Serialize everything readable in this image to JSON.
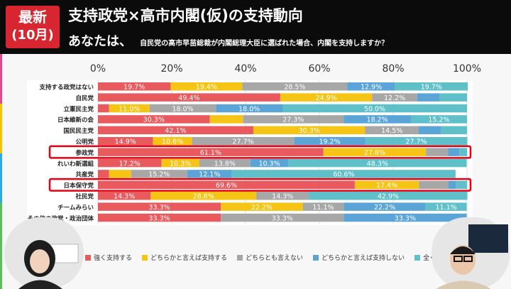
{
  "header": {
    "badge_line1": "最新",
    "badge_line2": "(10月)"
  },
  "chart_data": {
    "type": "bar",
    "orientation": "horizontal",
    "stacked": true,
    "title": "支持政党×高市内閣(仮)の支持動向",
    "subtitle_lead": "あなたは、",
    "subtitle": "自民党の高市早苗総裁が内閣総理大臣に選ばれた場合、内閣を支持しますか？",
    "xlim": [
      0,
      100
    ],
    "x_ticks": [
      "0%",
      "20%",
      "40%",
      "60%",
      "80%",
      "100%"
    ],
    "categories": [
      "支持する政党はない",
      "自民党",
      "立憲民主党",
      "日本維新の会",
      "国民民主党",
      "公明党",
      "参政党",
      "れいわ新選組",
      "共産党",
      "日本保守党",
      "社民党",
      "チームみらい",
      "その他の政党・政治団体"
    ],
    "highlighted": [
      "参政党",
      "日本保守党"
    ],
    "series": [
      {
        "name": "強く支持する",
        "color": "#e85a5e",
        "values": [
          19.7,
          49.4,
          3.0,
          30.3,
          42.1,
          14.9,
          61.1,
          17.2,
          3.0,
          69.6,
          14.3,
          33.3,
          33.3
        ]
      },
      {
        "name": "どちらかと言えば支持する",
        "color": "#f5c415",
        "values": [
          19.4,
          24.9,
          11.0,
          9.0,
          30.3,
          10.6,
          27.8,
          10.3,
          6.0,
          17.4,
          28.6,
          22.2,
          0.0
        ]
      },
      {
        "name": "どちらとも言えない",
        "color": "#a7a7a7",
        "values": [
          28.5,
          12.2,
          18.0,
          27.3,
          14.5,
          27.7,
          6.0,
          13.8,
          15.2,
          8.0,
          14.3,
          11.1,
          33.3
        ]
      },
      {
        "name": "どちらかと言えば支持しない",
        "color": "#5aa4d8",
        "values": [
          12.9,
          6.0,
          18.0,
          18.2,
          6.0,
          19.2,
          3.0,
          10.3,
          12.1,
          2.0,
          0.0,
          22.2,
          33.3
        ]
      },
      {
        "name": "全く支持しない",
        "color": "#5fc0c9",
        "values": [
          19.7,
          7.5,
          50.0,
          15.2,
          7.1,
          27.7,
          2.1,
          48.3,
          60.6,
          3.0,
          42.9,
          11.1,
          0.0
        ]
      }
    ],
    "labels": [
      [
        "19.7%",
        "19.4%",
        "28.5%",
        "12.9%",
        "19.7%"
      ],
      [
        "49.4%",
        "24.9%",
        "12.2%",
        "",
        ""
      ],
      [
        "",
        "11.0%",
        "18.0%",
        "18.0%",
        "50.0%"
      ],
      [
        "30.3%",
        "",
        "27.3%",
        "18.2%",
        "15.2%"
      ],
      [
        "42.1%",
        "30.3%",
        "14.5%",
        "",
        ""
      ],
      [
        "14.9%",
        "10.6%",
        "27.7%",
        "19.2%",
        "27.7%"
      ],
      [
        "61.1%",
        "27.8%",
        "",
        "",
        ""
      ],
      [
        "17.2%",
        "10.3%",
        "13.8%",
        "10.3%",
        "48.3%"
      ],
      [
        "",
        "",
        "15.2%",
        "12.1%",
        "60.6%"
      ],
      [
        "69.6%",
        "17.4%",
        "",
        "",
        ""
      ],
      [
        "14.3%",
        "28.6%",
        "14.3%",
        "",
        "42.9%"
      ],
      [
        "33.3%",
        "22.2%",
        "11.1%",
        "22.2%",
        "11.1%"
      ],
      [
        "33.3%",
        "",
        "33.3%",
        "33.3%",
        ""
      ]
    ]
  }
}
